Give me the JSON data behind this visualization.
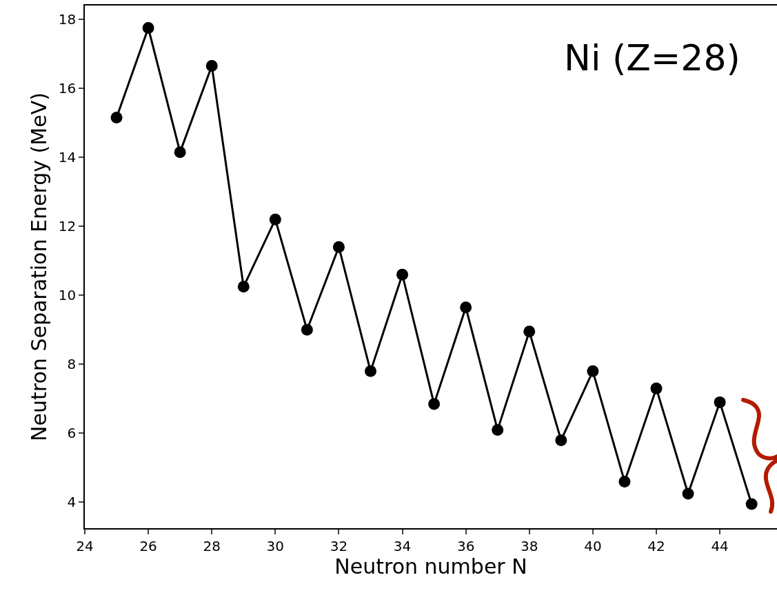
{
  "chart_data": {
    "type": "line",
    "xlabel": "Neutron number N",
    "ylabel": "Neutron Separation Energy (MeV)",
    "annotations": [
      "Ni (Z=28)"
    ],
    "x": [
      25,
      26,
      27,
      28,
      29,
      30,
      31,
      32,
      33,
      34,
      35,
      36,
      37,
      38,
      39,
      40,
      41,
      42,
      43,
      44,
      45
    ],
    "series": [
      {
        "color": "#000000",
        "values": [
          15.15,
          17.75,
          14.15,
          16.65,
          10.25,
          12.2,
          9.0,
          11.4,
          7.8,
          10.6,
          6.85,
          9.65,
          6.1,
          8.95,
          5.8,
          7.8,
          4.6,
          7.3,
          4.25,
          6.9,
          3.95
        ]
      }
    ],
    "xlim": [
      24,
      45.8
    ],
    "ylim": [
      3.25,
      18.4
    ],
    "xticks": [
      24,
      26,
      28,
      30,
      32,
      34,
      36,
      38,
      40,
      42,
      44
    ],
    "yticks": [
      4,
      6,
      8,
      10,
      12,
      14,
      16,
      18
    ],
    "grid": false,
    "legend": false,
    "marker": "circle",
    "line_style": "solid"
  }
}
